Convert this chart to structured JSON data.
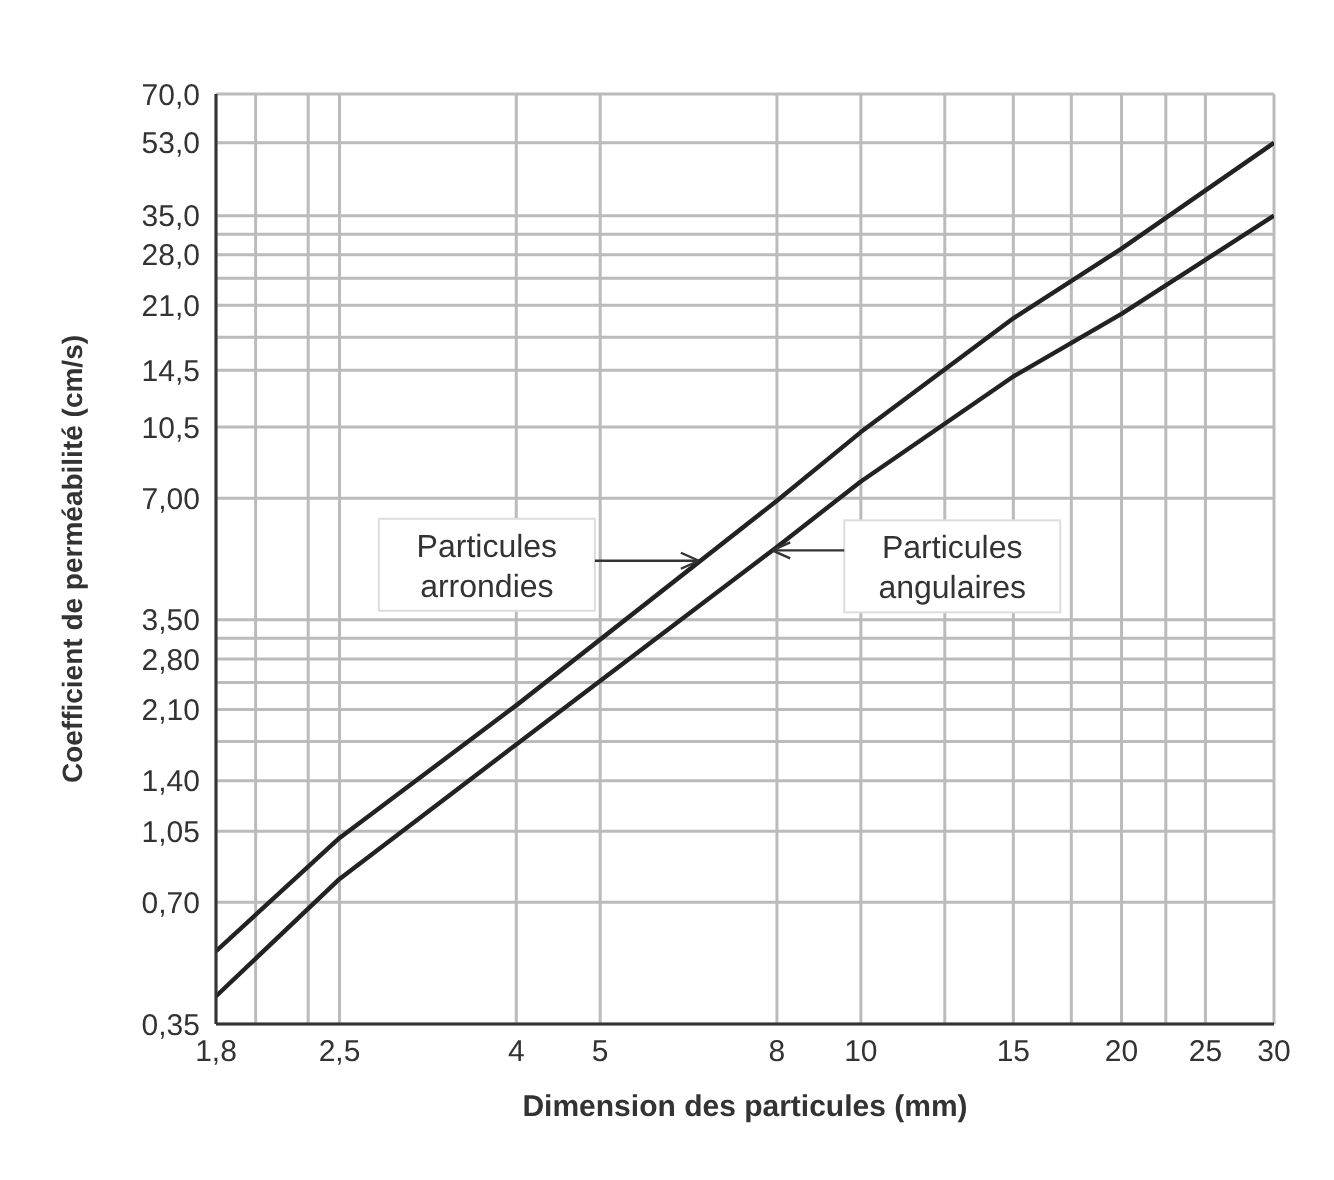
{
  "chart_data": {
    "type": "line",
    "xlabel": "Dimension des particules (mm)",
    "ylabel": "Coefficient de perméabilité (cm/s)",
    "log": "xy",
    "grid": true,
    "legend": false,
    "marker": "none",
    "line_style": "solid",
    "xlim": [
      1.8,
      30
    ],
    "xticks": [
      {
        "value": 1.8,
        "label": "1,8"
      },
      {
        "value": 2,
        "label": null
      },
      {
        "value": 2.3,
        "label": null
      },
      {
        "value": 2.5,
        "label": "2,5"
      },
      4,
      5,
      8,
      10,
      {
        "value": 12.5,
        "label": null
      },
      15,
      {
        "value": 17.5,
        "label": null
      },
      20,
      {
        "value": 22.5,
        "label": null
      },
      25,
      30
    ],
    "ylim": [
      0.35,
      70
    ],
    "yticks": [
      {
        "value": 0.35,
        "label": "0,35"
      },
      {
        "value": 0.7,
        "label": "0,70"
      },
      {
        "value": 1.05,
        "label": "1,05"
      },
      {
        "value": 1.4,
        "label": "1,40"
      },
      {
        "value": 1.75,
        "label": null
      },
      {
        "value": 2.1,
        "label": "2,10"
      },
      {
        "value": 2.45,
        "label": null
      },
      {
        "value": 2.8,
        "label": "2,80"
      },
      {
        "value": 3.15,
        "label": null
      },
      {
        "value": 3.5,
        "label": "3,50"
      },
      {
        "value": 7,
        "label": "7,00"
      },
      {
        "value": 10.5,
        "label": "10,5"
      },
      {
        "value": 14.5,
        "label": "14,5"
      },
      {
        "value": 17.5,
        "label": null
      },
      {
        "value": 21,
        "label": "21,0"
      },
      {
        "value": 24.5,
        "label": null
      },
      {
        "value": 28,
        "label": "28,0"
      },
      {
        "value": 31.5,
        "label": null
      },
      {
        "value": 35,
        "label": "35,0"
      },
      {
        "value": 53,
        "label": "53,0"
      },
      {
        "value": 70,
        "label": "70,0"
      }
    ],
    "series": [
      {
        "color": "#222222",
        "x": [
          1.8,
          2.5,
          4,
          8,
          10,
          15,
          20,
          30
        ],
        "values": [
          0.53,
          1.01,
          2.15,
          6.9,
          10.2,
          19.5,
          29,
          53
        ]
      },
      {
        "color": "#222222",
        "x": [
          1.8,
          2.5,
          4,
          8,
          10,
          15,
          20,
          30
        ],
        "values": [
          0.41,
          0.8,
          1.72,
          5.3,
          7.7,
          14,
          20,
          35
        ]
      }
    ],
    "annotations": [
      {
        "text": "Particules\narrondies",
        "x": 6.5,
        "y": 4.9
      },
      {
        "text": "Particules\nangulaires",
        "x": 7.9,
        "y": 5.2
      }
    ]
  }
}
